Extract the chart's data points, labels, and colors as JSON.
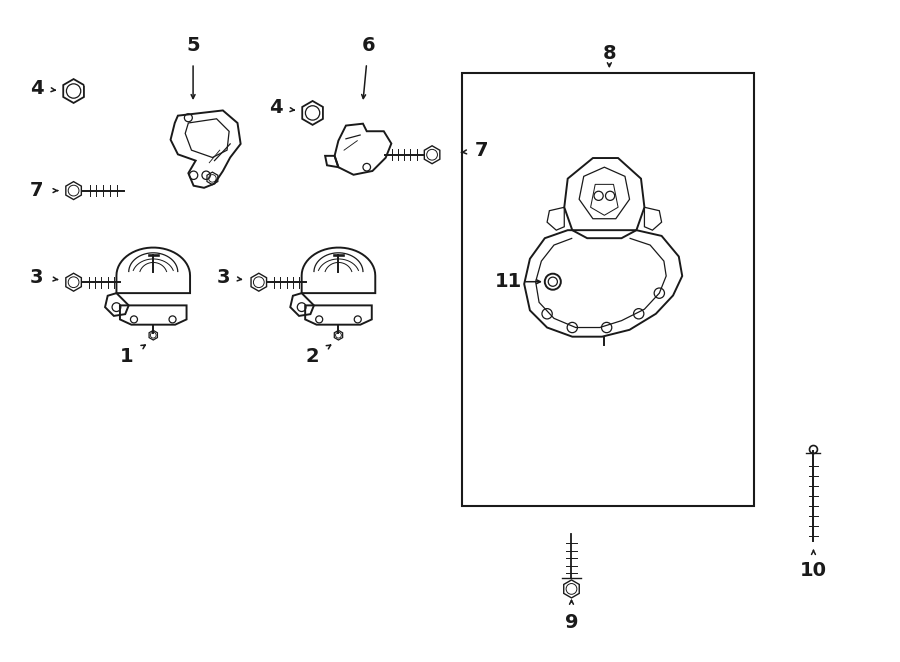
{
  "bg_color": "#ffffff",
  "line_color": "#1a1a1a",
  "label_fontsize": 14,
  "label_fontweight": "bold",
  "figsize": [
    9.0,
    6.62
  ],
  "dpi": 100,
  "xlim": [
    0,
    9
  ],
  "ylim": [
    0,
    6.62
  ]
}
